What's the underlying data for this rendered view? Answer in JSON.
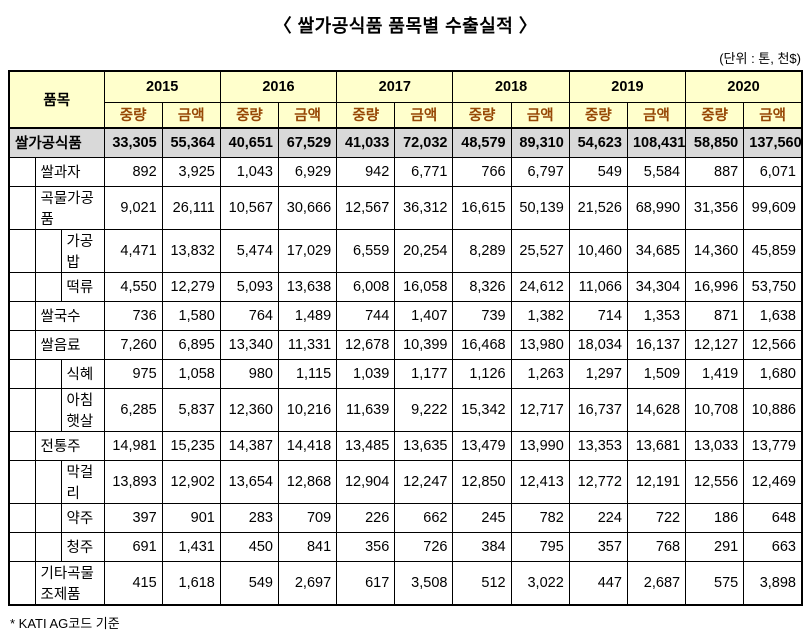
{
  "title": "〈 쌀가공식품 품목별 수출실적 〉",
  "unit_note": "(단위 : 톤, 천$)",
  "footnote": "* KATI AG코드 기준",
  "colors": {
    "header_bg": "#FFFFCC",
    "total_row_bg": "#D9D9D9",
    "subheader_text": "#974806",
    "border": "#000000"
  },
  "table": {
    "item_header": "품목",
    "years": [
      "2015",
      "2016",
      "2017",
      "2018",
      "2019",
      "2020"
    ],
    "sub_headers": [
      "중량",
      "금액"
    ],
    "rows": [
      {
        "label": "쌀가공식품",
        "level": 0,
        "emphasis": true,
        "values": [
          "33,305",
          "55,364",
          "40,651",
          "67,529",
          "41,033",
          "72,032",
          "48,579",
          "89,310",
          "54,623",
          "108,431",
          "58,850",
          "137,560"
        ]
      },
      {
        "label": "쌀과자",
        "level": 1,
        "emphasis": false,
        "values": [
          "892",
          "3,925",
          "1,043",
          "6,929",
          "942",
          "6,771",
          "766",
          "6,797",
          "549",
          "5,584",
          "887",
          "6,071"
        ]
      },
      {
        "label": "곡물가공품",
        "level": 1,
        "emphasis": false,
        "values": [
          "9,021",
          "26,111",
          "10,567",
          "30,666",
          "12,567",
          "36,312",
          "16,615",
          "50,139",
          "21,526",
          "68,990",
          "31,356",
          "99,609"
        ]
      },
      {
        "label": "가공밥",
        "level": 2,
        "emphasis": false,
        "values": [
          "4,471",
          "13,832",
          "5,474",
          "17,029",
          "6,559",
          "20,254",
          "8,289",
          "25,527",
          "10,460",
          "34,685",
          "14,360",
          "45,859"
        ]
      },
      {
        "label": "떡류",
        "level": 2,
        "emphasis": false,
        "values": [
          "4,550",
          "12,279",
          "5,093",
          "13,638",
          "6,008",
          "16,058",
          "8,326",
          "24,612",
          "11,066",
          "34,304",
          "16,996",
          "53,750"
        ]
      },
      {
        "label": "쌀국수",
        "level": 1,
        "emphasis": false,
        "values": [
          "736",
          "1,580",
          "764",
          "1,489",
          "744",
          "1,407",
          "739",
          "1,382",
          "714",
          "1,353",
          "871",
          "1,638"
        ]
      },
      {
        "label": "쌀음료",
        "level": 1,
        "emphasis": false,
        "values": [
          "7,260",
          "6,895",
          "13,340",
          "11,331",
          "12,678",
          "10,399",
          "16,468",
          "13,980",
          "18,034",
          "16,137",
          "12,127",
          "12,566"
        ]
      },
      {
        "label": "식혜",
        "level": 2,
        "emphasis": false,
        "values": [
          "975",
          "1,058",
          "980",
          "1,115",
          "1,039",
          "1,177",
          "1,126",
          "1,263",
          "1,297",
          "1,509",
          "1,419",
          "1,680"
        ]
      },
      {
        "label": "아침햇살",
        "level": 2,
        "emphasis": false,
        "values": [
          "6,285",
          "5,837",
          "12,360",
          "10,216",
          "11,639",
          "9,222",
          "15,342",
          "12,717",
          "16,737",
          "14,628",
          "10,708",
          "10,886"
        ]
      },
      {
        "label": "전통주",
        "level": 1,
        "emphasis": false,
        "values": [
          "14,981",
          "15,235",
          "14,387",
          "14,418",
          "13,485",
          "13,635",
          "13,479",
          "13,990",
          "13,353",
          "13,681",
          "13,033",
          "13,779"
        ]
      },
      {
        "label": "막걸리",
        "level": 2,
        "emphasis": false,
        "values": [
          "13,893",
          "12,902",
          "13,654",
          "12,868",
          "12,904",
          "12,247",
          "12,850",
          "12,413",
          "12,772",
          "12,191",
          "12,556",
          "12,469"
        ]
      },
      {
        "label": "약주",
        "level": 2,
        "emphasis": false,
        "values": [
          "397",
          "901",
          "283",
          "709",
          "226",
          "662",
          "245",
          "782",
          "224",
          "722",
          "186",
          "648"
        ]
      },
      {
        "label": "청주",
        "level": 2,
        "emphasis": false,
        "values": [
          "691",
          "1,431",
          "450",
          "841",
          "356",
          "726",
          "384",
          "795",
          "357",
          "768",
          "291",
          "663"
        ]
      },
      {
        "label": "기타곡물 조제품",
        "level": 1,
        "emphasis": false,
        "values": [
          "415",
          "1,618",
          "549",
          "2,697",
          "617",
          "3,508",
          "512",
          "3,022",
          "447",
          "2,687",
          "575",
          "3,898"
        ]
      }
    ]
  }
}
